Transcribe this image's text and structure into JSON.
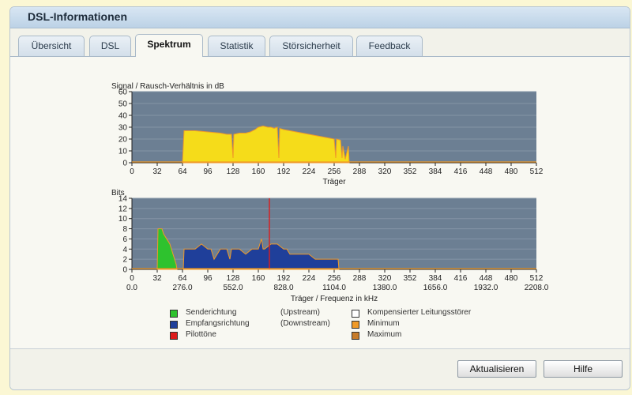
{
  "window": {
    "title": "DSL-Informationen"
  },
  "tabs": [
    {
      "label": "Übersicht",
      "active": false
    },
    {
      "label": "DSL",
      "active": false
    },
    {
      "label": "Spektrum",
      "active": true
    },
    {
      "label": "Statistik",
      "active": false
    },
    {
      "label": "Störsicherheit",
      "active": false
    },
    {
      "label": "Feedback",
      "active": false
    }
  ],
  "buttons": {
    "refresh": "Aktualisieren",
    "help": "Hilfe"
  },
  "colors": {
    "plot_bg": "#6c7f93",
    "snr_fill": "#f5dc1a",
    "upstream": "#2ec22e",
    "downstream": "#1f3f9a",
    "pilot": "#dd1c1c",
    "minimum": "#f09a28",
    "maximum": "#c77b2a",
    "compensated": "#ffffff"
  },
  "chart_data": [
    {
      "type": "area",
      "title": "Signal / Rausch-Verhältnis in dB",
      "xlabel": "Träger",
      "ylabel": "",
      "xlim": [
        0,
        512
      ],
      "ylim": [
        0,
        60
      ],
      "xticks": [
        0,
        32,
        64,
        96,
        128,
        160,
        192,
        224,
        256,
        288,
        320,
        352,
        384,
        416,
        448,
        480,
        512
      ],
      "yticks": [
        0,
        10,
        20,
        30,
        40,
        50,
        60
      ],
      "grid": true,
      "series": [
        {
          "x": [
            64,
            66,
            80,
            96,
            112,
            120,
            126,
            128,
            129,
            136,
            144,
            150,
            156,
            160,
            166,
            172,
            176,
            180,
            184,
            186,
            187,
            192,
            200,
            208,
            216,
            224,
            232,
            240,
            248,
            256,
            258,
            259,
            264,
            266,
            267,
            270,
            274,
            275
          ],
          "values": [
            0,
            27,
            27,
            26,
            25,
            24,
            24,
            4,
            24,
            25,
            25,
            26,
            28,
            30,
            31,
            30,
            30,
            29,
            30,
            4,
            29,
            28,
            27,
            26,
            25,
            24,
            23,
            22,
            21,
            20,
            4,
            20,
            19,
            4,
            14,
            3,
            14,
            0
          ]
        }
      ]
    },
    {
      "type": "area",
      "title": "Bits",
      "xlabel": "Träger / Frequenz in kHz",
      "ylabel": "",
      "xlim": [
        0,
        512
      ],
      "ylim": [
        0,
        14
      ],
      "xticks": [
        0,
        32,
        64,
        96,
        128,
        160,
        192,
        224,
        256,
        288,
        320,
        352,
        384,
        416,
        448,
        480,
        512
      ],
      "xticks_khz": [
        "0.0",
        "276.0",
        "552.0",
        "828.0",
        "1104.0",
        "1380.0",
        "1656.0",
        "1932.0",
        "2208.0"
      ],
      "yticks": [
        0,
        2,
        4,
        6,
        8,
        10,
        12,
        14
      ],
      "grid": true,
      "series": [
        {
          "name": "Senderichtung",
          "x": [
            32,
            33,
            38,
            40,
            44,
            48,
            52,
            56,
            57
          ],
          "values": [
            0,
            8,
            8,
            7,
            6,
            5,
            3,
            1,
            0
          ]
        },
        {
          "name": "Empfangsrichtung",
          "x": [
            65,
            66,
            72,
            80,
            88,
            96,
            100,
            104,
            112,
            120,
            124,
            126,
            128,
            136,
            144,
            152,
            160,
            162,
            164,
            166,
            168,
            176,
            184,
            192,
            196,
            200,
            208,
            216,
            224,
            232,
            240,
            248,
            256,
            261,
            262
          ],
          "values": [
            0,
            4,
            4,
            4,
            5,
            4,
            4,
            2,
            4,
            4,
            2,
            4,
            4,
            4,
            3,
            4,
            4,
            5,
            6,
            4,
            4,
            5,
            5,
            4,
            4,
            3,
            3,
            3,
            3,
            2,
            2,
            2,
            2,
            2,
            0
          ]
        },
        {
          "name": "Pilottöne",
          "x": [
            174
          ],
          "values": [
            14
          ]
        }
      ]
    }
  ],
  "legend": [
    {
      "label": "Senderichtung",
      "sub": "(Upstream)",
      "color": "#2ec22e"
    },
    {
      "label": "Empfangsrichtung",
      "sub": "(Downstream)",
      "color": "#1f3f9a"
    },
    {
      "label": "Pilottöne",
      "sub": "",
      "color": "#dd1c1c"
    },
    {
      "label": "Kompensierter Leitungsstörer",
      "sub": "",
      "color": "#ffffff"
    },
    {
      "label": "Minimum",
      "sub": "",
      "color": "#f09a28"
    },
    {
      "label": "Maximum",
      "sub": "",
      "color": "#c77b2a"
    }
  ]
}
